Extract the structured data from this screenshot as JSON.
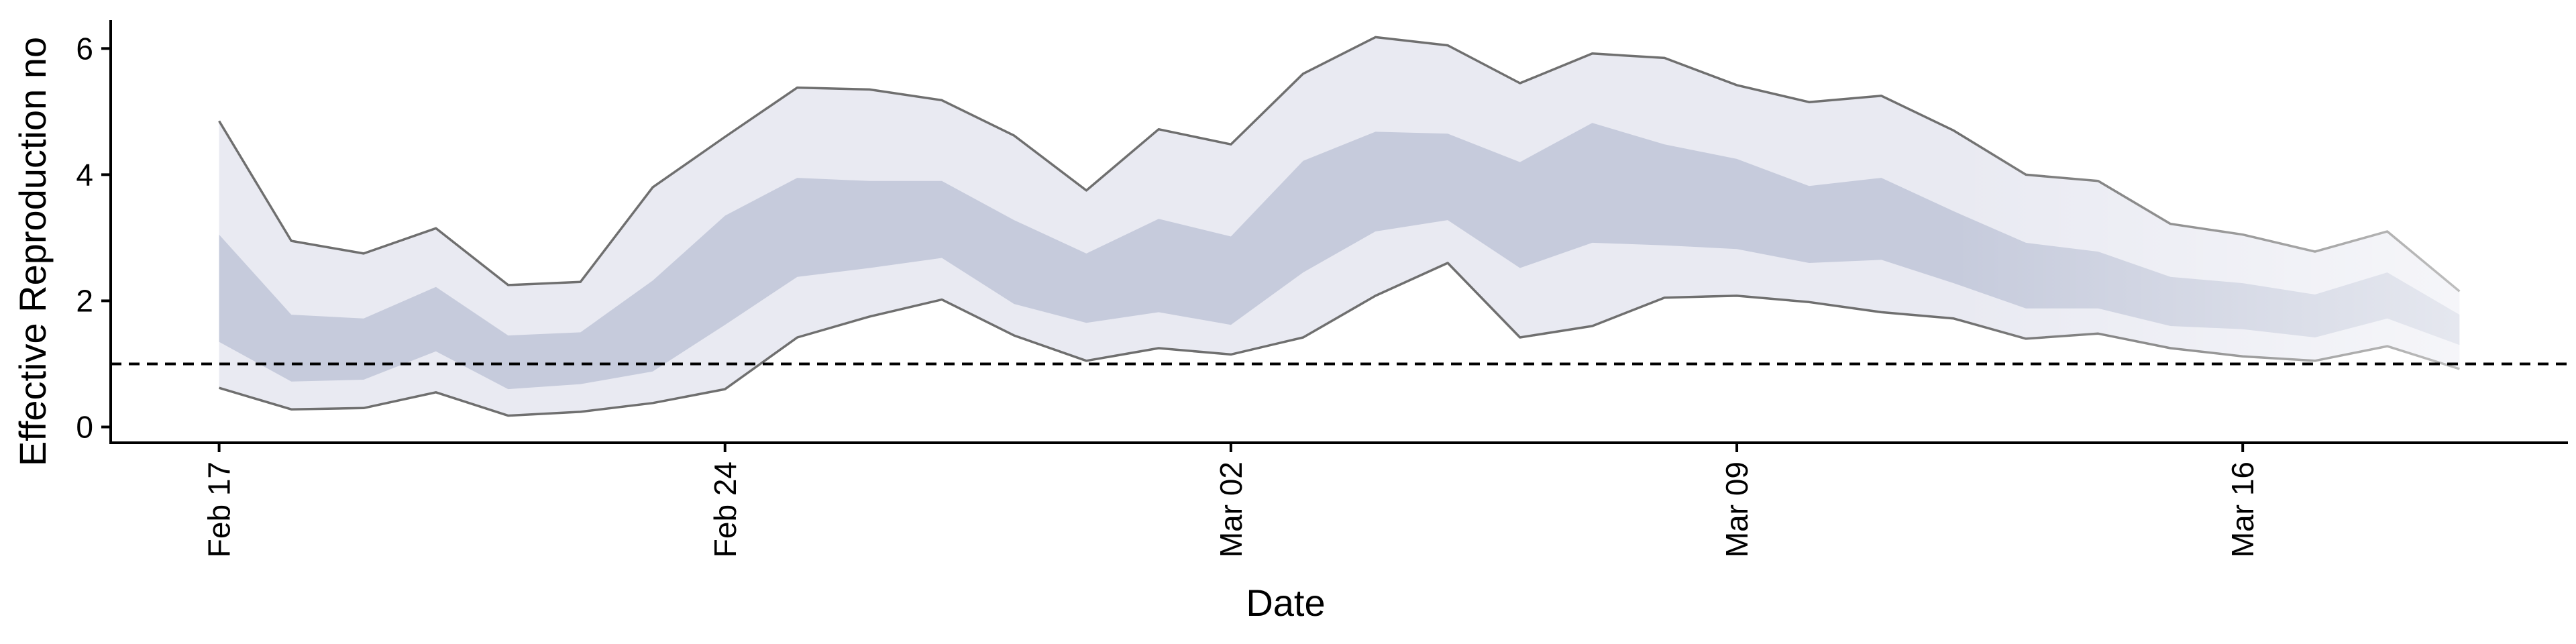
{
  "chart_data": {
    "type": "area",
    "title": "",
    "xlabel": "Date",
    "ylabel": "Effective Reproduction no",
    "x_tick_labels": [
      "Feb 17",
      "Feb 24",
      "Mar 02",
      "Mar 09",
      "Mar 16"
    ],
    "x_tick_days": [
      0,
      7,
      14,
      21,
      28
    ],
    "y_ticks": [
      0,
      2,
      4,
      6
    ],
    "xlim_days": [
      -1.5,
      32.5
    ],
    "ylim": [
      -0.25,
      6.45
    ],
    "grid": false,
    "legend": "none",
    "reference_line": {
      "y": 1,
      "style": "dashed",
      "color": "#000000"
    },
    "colors": {
      "outer_band": "#e9eaf2",
      "inner_band": "#c6cbdc",
      "outer_line": "#6f6f6f",
      "forecast_fade": "#ffffff"
    },
    "series": [
      {
        "band": "outer_upper",
        "values": [
          4.85,
          2.95,
          2.75,
          3.15,
          2.25,
          2.3,
          3.8,
          4.6,
          5.38,
          5.35,
          5.18,
          4.62,
          3.75,
          4.72,
          4.48,
          5.6,
          6.18,
          6.05,
          5.45,
          5.92,
          5.85,
          5.42,
          5.15,
          5.25,
          4.7,
          4.0,
          3.9,
          3.22,
          3.05,
          2.78,
          3.1,
          2.15
        ]
      },
      {
        "band": "inner_upper",
        "values": [
          3.05,
          1.78,
          1.72,
          2.22,
          1.45,
          1.5,
          2.32,
          3.35,
          3.95,
          3.9,
          3.9,
          3.28,
          2.75,
          3.3,
          3.02,
          4.22,
          4.68,
          4.65,
          4.2,
          4.82,
          4.48,
          4.25,
          3.82,
          3.95,
          3.42,
          2.92,
          2.78,
          2.38,
          2.28,
          2.1,
          2.45,
          1.78
        ]
      },
      {
        "band": "inner_lower",
        "values": [
          1.35,
          0.72,
          0.75,
          1.2,
          0.6,
          0.68,
          0.88,
          1.62,
          2.38,
          2.52,
          2.68,
          1.95,
          1.65,
          1.82,
          1.62,
          2.45,
          3.1,
          3.28,
          2.52,
          2.92,
          2.88,
          2.82,
          2.6,
          2.65,
          2.28,
          1.88,
          1.88,
          1.6,
          1.55,
          1.42,
          1.72,
          1.3
        ]
      },
      {
        "band": "outer_lower",
        "values": [
          0.62,
          0.28,
          0.3,
          0.55,
          0.18,
          0.24,
          0.38,
          0.6,
          1.42,
          1.75,
          2.02,
          1.45,
          1.05,
          1.25,
          1.15,
          1.42,
          2.08,
          2.6,
          1.42,
          1.6,
          2.05,
          2.08,
          1.98,
          1.82,
          1.72,
          1.4,
          1.48,
          1.25,
          1.12,
          1.05,
          1.28,
          0.92
        ]
      }
    ],
    "forecast_start_day": 24
  }
}
